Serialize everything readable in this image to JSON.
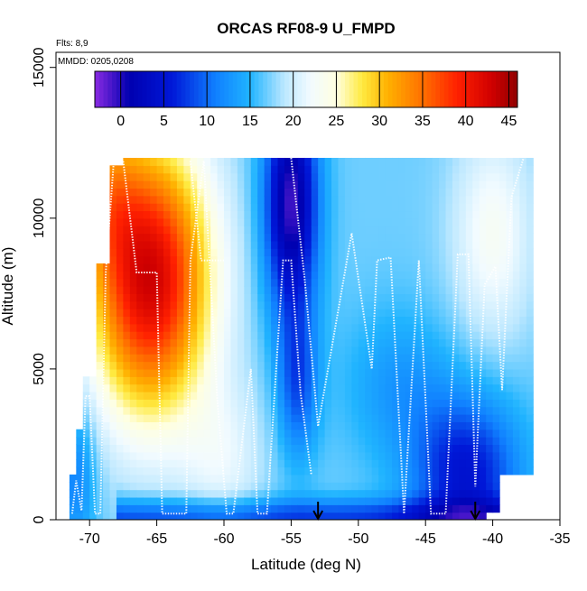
{
  "chart_data": {
    "type": "heatmap",
    "title": "ORCAS RF08-9 U_FMPD",
    "flights_note": "Flts: 8,9",
    "mmdd_note": "MMDD: 0205,0208",
    "xlabel": "Latitude (deg N)",
    "ylabel": "Altitude (m)",
    "xlim": [
      -72.5,
      -35
    ],
    "ylim": [
      0,
      15500
    ],
    "x_ticks": [
      -70,
      -65,
      -60,
      -55,
      -50,
      -45,
      -40,
      -35
    ],
    "x_tick_labels": [
      "-70",
      "-65",
      "-60",
      "-55",
      "-50",
      "-45",
      "-40",
      "-35"
    ],
    "y_ticks": [
      0,
      5000,
      10000,
      15000
    ],
    "y_tick_labels": [
      "0",
      "5000",
      "10000",
      "15000"
    ],
    "colorbar": {
      "range": [
        -3,
        46
      ],
      "ticks": [
        0,
        5,
        10,
        15,
        20,
        25,
        30,
        35,
        40,
        45
      ],
      "tick_labels": [
        "0",
        "5",
        "10",
        "15",
        "20",
        "25",
        "30",
        "35",
        "40",
        "45"
      ],
      "stops": [
        {
          "v": -3,
          "c": "#8a2be2"
        },
        {
          "v": 1,
          "c": "#0000b0"
        },
        {
          "v": 6,
          "c": "#0018d8"
        },
        {
          "v": 11,
          "c": "#1080ff"
        },
        {
          "v": 15,
          "c": "#20b4ff"
        },
        {
          "v": 19,
          "c": "#bde8ff"
        },
        {
          "v": 22,
          "c": "#f2fbff"
        },
        {
          "v": 25,
          "c": "#ffffe0"
        },
        {
          "v": 28,
          "c": "#ffea40"
        },
        {
          "v": 31,
          "c": "#ffb000"
        },
        {
          "v": 35,
          "c": "#ff7000"
        },
        {
          "v": 39,
          "c": "#ff2000"
        },
        {
          "v": 43,
          "c": "#d00000"
        },
        {
          "v": 46,
          "c": "#900000"
        }
      ]
    },
    "arrows_at_lat": [
      -53,
      -41.3
    ],
    "wind_field": {
      "lat_min": -71.5,
      "lat_max": -37.0,
      "cols": 69,
      "alt_max": 12000,
      "rows": 48
    }
  }
}
